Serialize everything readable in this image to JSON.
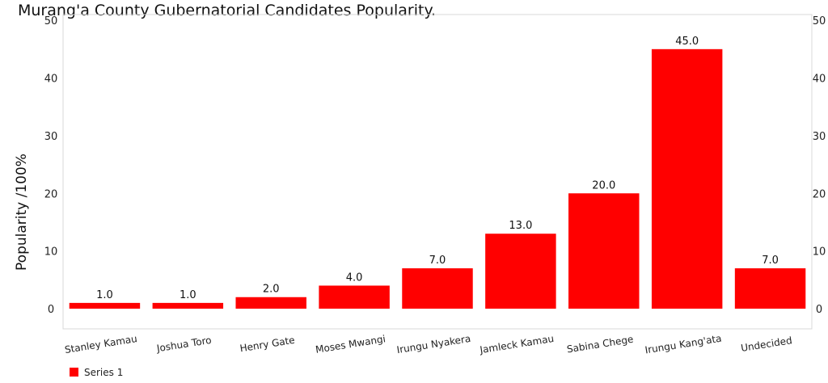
{
  "chart_data": {
    "type": "bar",
    "title": "Murang'a County Gubernatorial Candidates Popularity.",
    "ylabel": "Popularity /100%",
    "xlabel": "",
    "categories": [
      "Stanley Kamau",
      "Joshua Toro",
      "Henry Gate",
      "Moses Mwangi",
      "Irungu Nyakera",
      "Jamleck Kamau",
      "Sabina Chege",
      "Irungu Kang'ata",
      "Undecided"
    ],
    "series": [
      {
        "name": "Series 1",
        "values": [
          1.0,
          1.0,
          2.0,
          4.0,
          7.0,
          13.0,
          20.0,
          45.0,
          7.0
        ],
        "labels": [
          "1.0",
          "1.0",
          "2.0",
          "4.0",
          "7.0",
          "13.0",
          "20.0",
          "45.0",
          "7.0"
        ],
        "color": "#ff0000"
      }
    ],
    "yticks": [
      "0",
      "10",
      "20",
      "30",
      "40",
      "50"
    ],
    "ylim": [
      -3.5,
      51
    ],
    "secondary_axis": true,
    "grid": false,
    "legend_position": "bottom-left"
  }
}
